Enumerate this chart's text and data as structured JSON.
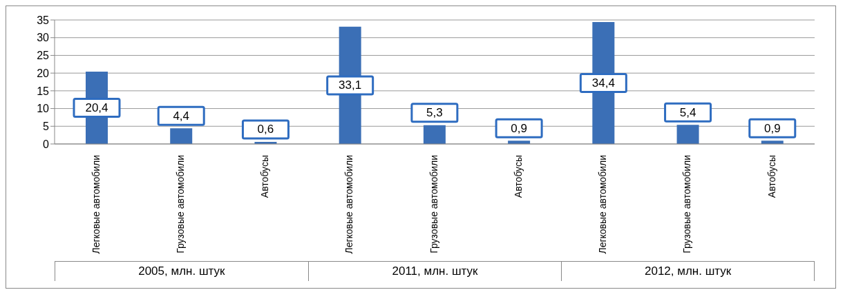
{
  "chart_data": {
    "type": "bar",
    "categories": [
      "Легковые автомобили",
      "Грузовые автомобили",
      "Автобусы",
      "Легковые автомобили",
      "Грузовые автомобили",
      "Автобусы",
      "Легковые автомобили",
      "Грузовые автомобили",
      "Автобусы"
    ],
    "values": [
      20.4,
      4.4,
      0.6,
      33.1,
      5.3,
      0.9,
      34.4,
      5.4,
      0.9
    ],
    "value_labels": [
      "20,4",
      "4,4",
      "0,6",
      "33,1",
      "5,3",
      "0,9",
      "34,4",
      "5,4",
      "0,9"
    ],
    "color": "#3b6fb6",
    "ylim": [
      0,
      35
    ],
    "yticks": [
      0,
      5,
      10,
      15,
      20,
      25,
      30,
      35
    ],
    "grid": "y",
    "annotations": [
      "2005, млн. штук",
      "2011, млн. штук",
      "2012, млн. штук"
    ]
  }
}
